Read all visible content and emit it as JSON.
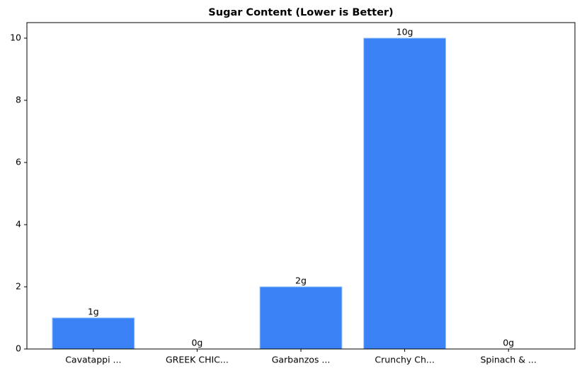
{
  "chart_data": {
    "type": "bar",
    "title": "Sugar Content (Lower is Better)",
    "categories": [
      "Cavatappi ...",
      "GREEK CHIC...",
      "Garbanzos ...",
      "Crunchy Ch...",
      "Spinach & ..."
    ],
    "values": [
      1,
      0,
      2,
      10,
      0
    ],
    "value_labels": [
      "1g",
      "0g",
      "2g",
      "10g",
      "0g"
    ],
    "color": "#3b82f6",
    "ylim": [
      0,
      10.5
    ],
    "yticks": [
      0,
      2,
      4,
      6,
      8,
      10
    ],
    "grid": false
  }
}
